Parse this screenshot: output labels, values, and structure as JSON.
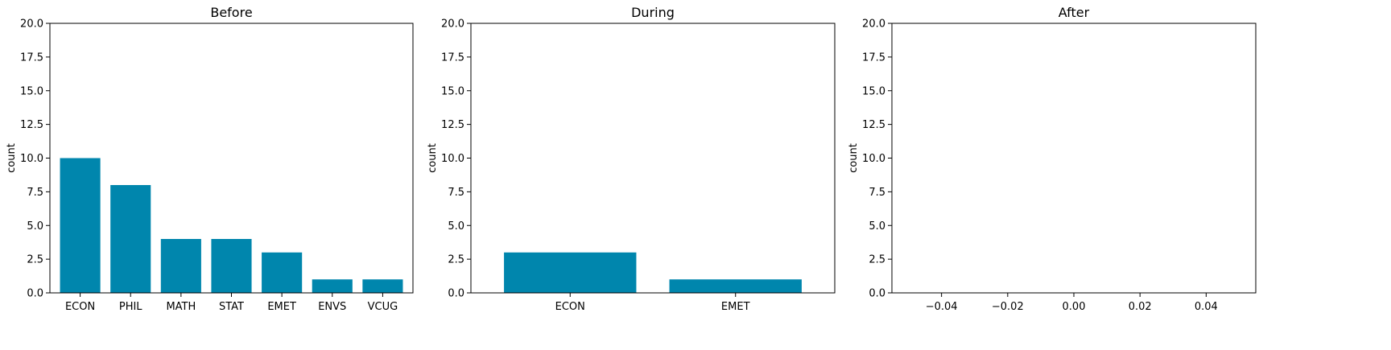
{
  "chart_data": [
    {
      "type": "bar",
      "title": "Before",
      "xlabel": "",
      "ylabel": "count",
      "categories": [
        "ECON",
        "PHIL",
        "MATH",
        "STAT",
        "EMET",
        "ENVS",
        "VCUG"
      ],
      "values": [
        10,
        8,
        4,
        4,
        3,
        1,
        1
      ],
      "ylim": [
        0,
        20
      ],
      "yticks": [
        "0.0",
        "2.5",
        "5.0",
        "7.5",
        "10.0",
        "12.5",
        "15.0",
        "17.5",
        "20.0"
      ],
      "bar_color": "#0086ad",
      "grid": false
    },
    {
      "type": "bar",
      "title": "During",
      "xlabel": "",
      "ylabel": "count",
      "categories": [
        "ECON",
        "EMET"
      ],
      "values": [
        3,
        1
      ],
      "ylim": [
        0,
        20
      ],
      "yticks": [
        "0.0",
        "2.5",
        "5.0",
        "7.5",
        "10.0",
        "12.5",
        "15.0",
        "17.5",
        "20.0"
      ],
      "bar_color": "#0086ad",
      "grid": false
    },
    {
      "type": "bar",
      "title": "After",
      "xlabel": "",
      "ylabel": "count",
      "categories": [],
      "values": [],
      "ylim": [
        0,
        20
      ],
      "xlim": [
        -0.055,
        0.055
      ],
      "yticks": [
        "0.0",
        "2.5",
        "5.0",
        "7.5",
        "10.0",
        "12.5",
        "15.0",
        "17.5",
        "20.0"
      ],
      "xticks": [
        "−0.04",
        "−0.02",
        "0.00",
        "0.02",
        "0.04"
      ],
      "bar_color": "#0086ad",
      "grid": false
    }
  ]
}
